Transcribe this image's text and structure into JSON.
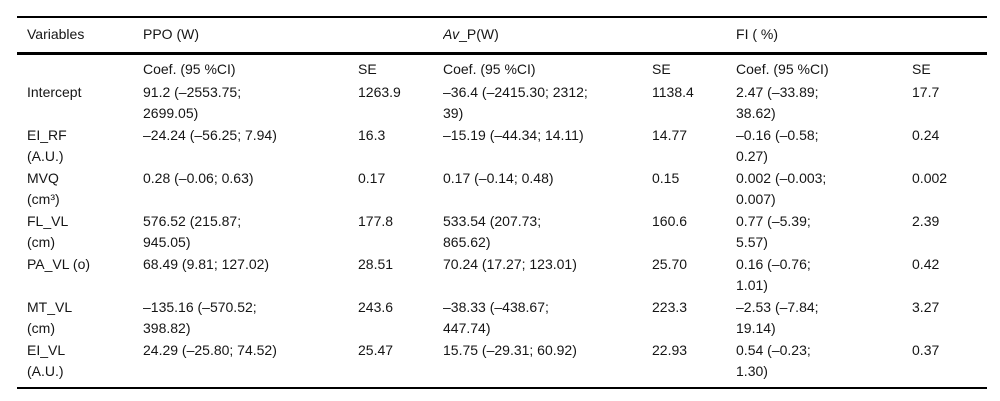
{
  "colors": {
    "background": "#ffffff",
    "text": "#151515",
    "rule": "#000000"
  },
  "header": {
    "variables": "Variables",
    "group_ppo": "PPO (W)",
    "group_avp_italic": "Av",
    "group_avp_rest": "_P(W)",
    "group_fi": "FI ( %)",
    "coef_label": "Coef. (95 %CI)",
    "se_label": "SE"
  },
  "rows": [
    {
      "variable": "Intercept",
      "ppo_coef": "91.2 (–2553.75;\n2699.05)",
      "ppo_se": "1263.9",
      "avp_coef": "–36.4 (–2415.30; 2312;\n39)",
      "avp_se": "1138.4",
      "fi_coef": "2.47 (–33.89;\n38.62)",
      "fi_se": "17.7"
    },
    {
      "variable": "EI_RF\n(A.U.)",
      "ppo_coef": "–24.24 (–56.25; 7.94)",
      "ppo_se": "16.3",
      "avp_coef": "–15.19 (–44.34; 14.11)",
      "avp_se": "14.77",
      "fi_coef": "–0.16 (–0.58;\n0.27)",
      "fi_se": "0.24"
    },
    {
      "variable": "MVQ\n(cm³)",
      "ppo_coef": "0.28 (–0.06; 0.63)",
      "ppo_se": "0.17",
      "avp_coef": "0.17 (–0.14; 0.48)",
      "avp_se": "0.15",
      "fi_coef": "0.002 (–0.003;\n0.007)",
      "fi_se": "0.002"
    },
    {
      "variable": "FL_VL\n(cm)",
      "ppo_coef": "576.52 (215.87;\n945.05)",
      "ppo_se": "177.8",
      "avp_coef": "533.54 (207.73;\n865.62)",
      "avp_se": "160.6",
      "fi_coef": "0.77 (–5.39;\n5.57)",
      "fi_se": "2.39"
    },
    {
      "variable": "PA_VL (o)",
      "ppo_coef": "68.49 (9.81; 127.02)",
      "ppo_se": "28.51",
      "avp_coef": "70.24 (17.27; 123.01)",
      "avp_se": "25.70",
      "fi_coef": "0.16 (–0.76;\n1.01)",
      "fi_se": "0.42"
    },
    {
      "variable": "MT_VL\n(cm)",
      "ppo_coef": "–135.16 (–570.52;\n398.82)",
      "ppo_se": "243.6",
      "avp_coef": "–38.33 (–438.67;\n447.74)",
      "avp_se": "223.3",
      "fi_coef": "–2.53 (–7.84;\n19.14)",
      "fi_se": "3.27"
    },
    {
      "variable": "EI_VL\n(A.U.)",
      "ppo_coef": "24.29 (–25.80; 74.52)",
      "ppo_se": "25.47",
      "avp_coef": "15.75 (–29.31; 60.92)",
      "avp_se": "22.93",
      "fi_coef": "0.54 (–0.23;\n1.30)",
      "fi_se": "0.37"
    }
  ]
}
